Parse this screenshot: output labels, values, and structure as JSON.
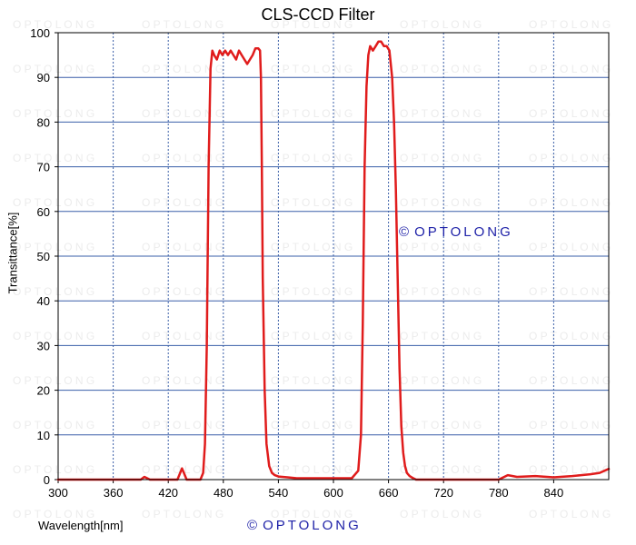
{
  "chart_data": {
    "type": "line",
    "title": "CLS-CCD Filter",
    "xlabel": "Wavelength[nm]",
    "ylabel": "Transittance[%]",
    "xlim": [
      300,
      900
    ],
    "ylim": [
      0,
      100
    ],
    "xticks": [
      300,
      360,
      420,
      480,
      540,
      600,
      660,
      720,
      780,
      840
    ],
    "yticks": [
      0,
      10,
      20,
      30,
      40,
      50,
      60,
      70,
      80,
      90,
      100
    ],
    "grid": true,
    "line_color": "#e01c1c",
    "grid_color_horizontal": "#3a5fa8",
    "grid_color_vertical": "#3a5fa8",
    "series": [
      {
        "x": [
          300,
          390,
          394,
          397,
          400,
          430,
          433,
          435,
          437,
          440,
          455,
          458,
          460,
          462,
          464,
          466,
          468,
          470,
          473,
          476,
          479,
          482,
          485,
          488,
          491,
          494,
          497,
          500,
          503,
          506,
          509,
          512,
          515,
          518,
          520,
          521,
          522,
          523,
          525,
          527,
          530,
          533,
          536,
          540,
          550,
          560,
          580,
          600,
          620,
          627,
          630,
          632,
          634,
          636,
          638,
          640,
          643,
          646,
          649,
          652,
          655,
          658,
          661,
          664,
          666,
          668,
          670,
          672,
          674,
          676,
          678,
          680,
          683,
          686,
          690,
          700,
          720,
          740,
          760,
          780,
          790,
          800,
          820,
          840,
          860,
          870,
          880,
          890,
          900
        ],
        "y": [
          0,
          0,
          0.6,
          0.3,
          0,
          0,
          1.5,
          2.5,
          1.5,
          0,
          0,
          1.5,
          8,
          30,
          70,
          92,
          96,
          95,
          94,
          96,
          95,
          96,
          95,
          96,
          95,
          94,
          96,
          95,
          94,
          93,
          94,
          95,
          96.5,
          96.5,
          96,
          90,
          70,
          45,
          20,
          8,
          3,
          1.5,
          1,
          0.7,
          0.5,
          0.3,
          0.3,
          0.3,
          0.3,
          2,
          10,
          35,
          70,
          88,
          95,
          97,
          96,
          97,
          98,
          98,
          97,
          97,
          96,
          90,
          80,
          65,
          45,
          25,
          12,
          6,
          3,
          1.5,
          0.8,
          0.4,
          0,
          0,
          0,
          0,
          0,
          0,
          1,
          0.6,
          0.8,
          0.5,
          0.8,
          1,
          1.2,
          1.5,
          2.4
        ]
      }
    ]
  },
  "watermark": "O P T O L O N G",
  "copyright": {
    "symbol": "©",
    "text": "OPTOLONG",
    "color": "#1f22a8"
  }
}
